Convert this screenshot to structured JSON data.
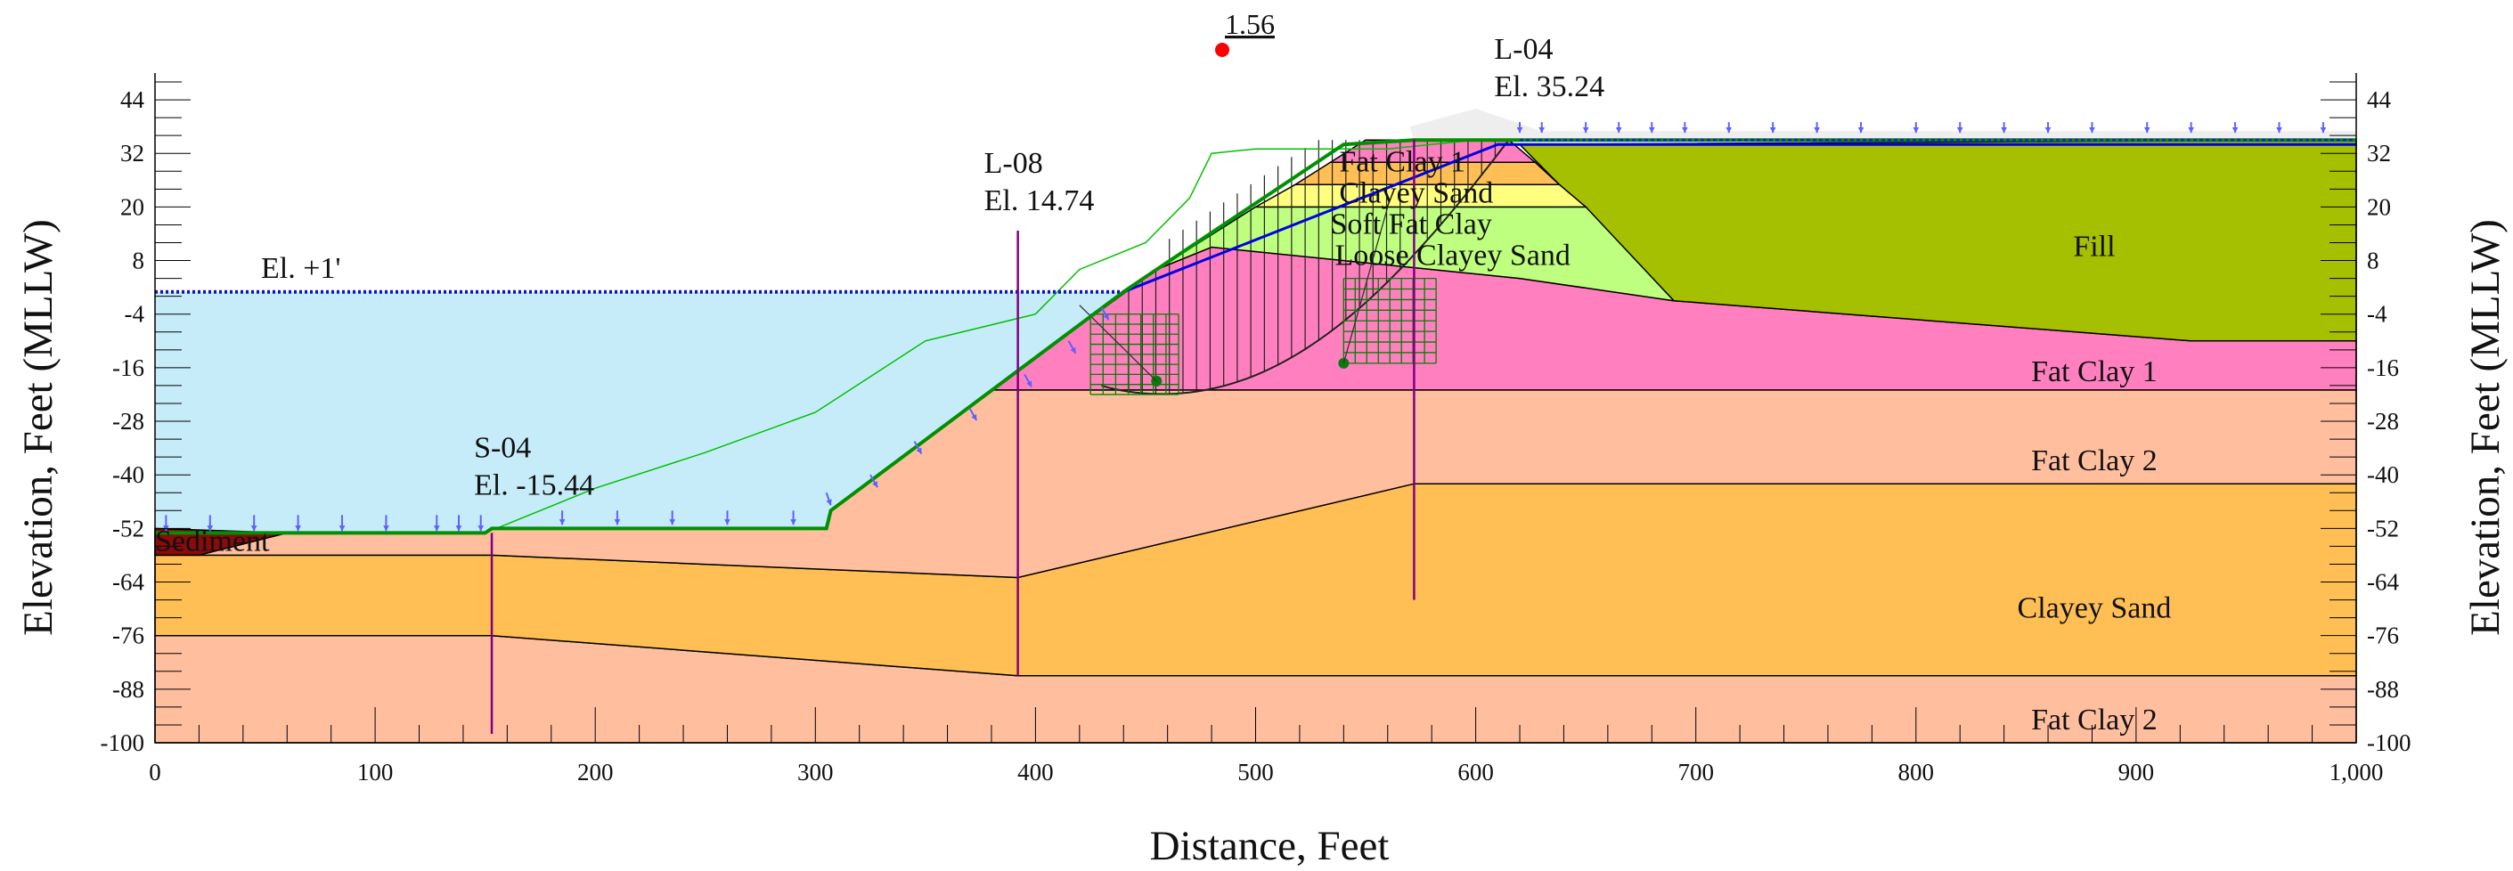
{
  "diagram": {
    "xlabel": "Distance, Feet",
    "ylabel_left": "Elevation, Feet (MLLW)",
    "ylabel_right": "Elevation, Feet (MLLW)",
    "x_ticks": [
      {
        "v": 0,
        "label": "0"
      },
      {
        "v": 100,
        "label": "100"
      },
      {
        "v": 200,
        "label": "200"
      },
      {
        "v": 300,
        "label": "300"
      },
      {
        "v": 400,
        "label": "400"
      },
      {
        "v": 500,
        "label": "500"
      },
      {
        "v": 600,
        "label": "600"
      },
      {
        "v": 700,
        "label": "700"
      },
      {
        "v": 800,
        "label": "800"
      },
      {
        "v": 900,
        "label": "900"
      },
      {
        "v": 1000,
        "label": "1,000"
      }
    ],
    "y_ticks": [
      {
        "v": 44,
        "label": "44"
      },
      {
        "v": 32,
        "label": "32"
      },
      {
        "v": 20,
        "label": "20"
      },
      {
        "v": 8,
        "label": "8"
      },
      {
        "v": -4,
        "label": "-4"
      },
      {
        "v": -16,
        "label": "-16"
      },
      {
        "v": -28,
        "label": "-28"
      },
      {
        "v": -40,
        "label": "-40"
      },
      {
        "v": -52,
        "label": "-52"
      },
      {
        "v": -64,
        "label": "-64"
      },
      {
        "v": -76,
        "label": "-76"
      },
      {
        "v": -88,
        "label": "-88"
      },
      {
        "v": -100,
        "label": "-100"
      }
    ],
    "x_range": [
      0,
      1000
    ],
    "y_range": [
      -100,
      50
    ],
    "factor_of_safety": "1.56",
    "water_label": "El. +1'",
    "water_elevation": 1,
    "borings": [
      {
        "id": "S-04",
        "elev_label": "El. -15.44",
        "x": 153,
        "top": -53,
        "bottom": -98
      },
      {
        "id": "L-08",
        "elev_label": "El. 14.74",
        "x": 392,
        "top": 14.7,
        "bottom": -85
      },
      {
        "id": "L-04",
        "elev_label": "El. 35.24",
        "x": 572,
        "top": 35.2,
        "bottom": -68
      }
    ],
    "layers": [
      {
        "name": "Fill",
        "color": "#a4c000",
        "label": "Fill",
        "label_at": [
          881,
          11
        ]
      },
      {
        "name": "Fat Clay 1 (embankment)",
        "color": "#ff7fbf",
        "label": "Fat Clay 1",
        "label_at": [
          538,
          30
        ]
      },
      {
        "name": "Clayey Sand (embankment)",
        "color": "#ffbf55",
        "label": "Clayey Sand",
        "label_at": [
          538,
          23
        ]
      },
      {
        "name": "Soft Fat Clay",
        "color": "#ffff7f",
        "label": "Soft Fat Clay",
        "label_at": [
          534,
          16
        ]
      },
      {
        "name": "Loose Clayey Sand",
        "color": "#bfff7f",
        "label": "Loose Clayey Sand",
        "label_at": [
          536,
          9
        ]
      },
      {
        "name": "Fat Clay 1",
        "color": "#ff7fbf",
        "label": "Fat Clay 1",
        "label_at": [
          881,
          -17
        ]
      },
      {
        "name": "Fat Clay 2",
        "color": "#ffbf9f",
        "label": "Fat Clay 2",
        "label_at": [
          881,
          -37
        ]
      },
      {
        "name": "Clayey Sand",
        "color": "#ffbf55",
        "label": "Clayey Sand",
        "label_at": [
          881,
          -70
        ]
      },
      {
        "name": "Fat Clay 2 (lower)",
        "color": "#ffbf9f",
        "label": "Fat Clay 2",
        "label_at": [
          881,
          -95
        ]
      },
      {
        "name": "Sediment",
        "color": "#8b0a0a",
        "label": "Sediment",
        "label_at": [
          0,
          -55
        ]
      },
      {
        "name": "Water",
        "color": "#c6ecfa",
        "label": "",
        "label_at": [
          0,
          0
        ]
      }
    ],
    "colors": {
      "ground_surface": "#009000",
      "piezometric_line": "#0000e0",
      "water_fill": "#c6ecfa",
      "load_arrows": "#6060ff",
      "slip_surface": "#008000",
      "critical_center": "#ff0000",
      "boring_line": "#800080",
      "trial_envelope": "#00c000"
    }
  }
}
